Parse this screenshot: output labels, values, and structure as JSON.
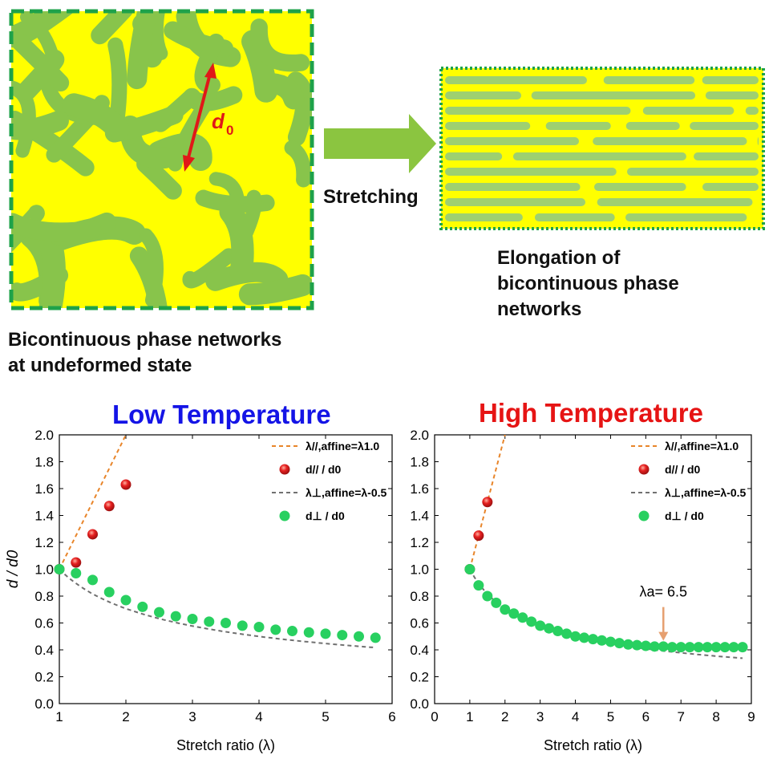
{
  "schematic": {
    "left_caption": [
      "Bicontinuous phase networks",
      "at undeformed state"
    ],
    "arrow_label": "Stretching",
    "right_caption": [
      "Elongation of",
      "bicontinuous phase",
      "networks"
    ],
    "spacing_label": "d",
    "spacing_subscript": "0",
    "colors": {
      "yellow": "#ffff00",
      "green": "#88c44b",
      "border": "#1ea24a",
      "arrow": "#8bc540",
      "spacing_arrow": "#e01818"
    }
  },
  "chart_data": [
    {
      "type": "scatter",
      "title": "Low Temperature",
      "title_color": "#1414e6",
      "xlabel": "Stretch ratio (λ)",
      "ylabel": "d / d0",
      "xlim": [
        1,
        6
      ],
      "ylim": [
        0.0,
        2.0
      ],
      "xticks": [
        "1",
        "2",
        "3",
        "4",
        "5",
        "6"
      ],
      "yticks": [
        "0.0",
        "0.2",
        "0.4",
        "0.6",
        "0.8",
        "1.0",
        "1.2",
        "1.4",
        "1.6",
        "1.8",
        "2.0"
      ],
      "legend_position": "top-right",
      "legend": [
        {
          "label": "λ//,affine=λ1.0",
          "kind": "dash",
          "color": "#e8852a"
        },
        {
          "label": "d// / d0",
          "kind": "marker",
          "color": "#e62020"
        },
        {
          "label": "λ⊥,affine=λ-0.5",
          "kind": "dash",
          "color": "#707070"
        },
        {
          "label": "d⊥ / d0",
          "kind": "marker",
          "color": "#28d060"
        }
      ],
      "series": [
        {
          "name": "λ//,affine=λ1.0",
          "kind": "line",
          "color": "#e8852a",
          "x": [
            1.0,
            2.0
          ],
          "y": [
            1.0,
            2.0
          ]
        },
        {
          "name": "d// / d0",
          "kind": "points",
          "color": "#e62020",
          "x": [
            1.0,
            1.25,
            1.5,
            1.75,
            2.0
          ],
          "y": [
            1.0,
            1.05,
            1.26,
            1.47,
            1.63
          ]
        },
        {
          "name": "λ⊥,affine=λ-0.5",
          "kind": "curve",
          "color": "#707070",
          "exponent": -0.5,
          "x": [
            1.0,
            5.75
          ]
        },
        {
          "name": "d⊥ / d0",
          "kind": "points",
          "color": "#28d060",
          "x": [
            1.0,
            1.25,
            1.5,
            1.75,
            2.0,
            2.25,
            2.5,
            2.75,
            3.0,
            3.25,
            3.5,
            3.75,
            4.0,
            4.25,
            4.5,
            4.75,
            5.0,
            5.25,
            5.5,
            5.75
          ],
          "y": [
            1.0,
            0.97,
            0.92,
            0.83,
            0.77,
            0.72,
            0.68,
            0.65,
            0.63,
            0.61,
            0.6,
            0.58,
            0.57,
            0.55,
            0.54,
            0.53,
            0.52,
            0.51,
            0.5,
            0.49
          ]
        }
      ]
    },
    {
      "type": "scatter",
      "title": "High Temperature",
      "title_color": "#e61414",
      "xlabel": "Stretch ratio (λ)",
      "ylabel": "",
      "xlim": [
        0,
        9
      ],
      "ylim": [
        0.0,
        2.0
      ],
      "xticks": [
        "0",
        "1",
        "2",
        "3",
        "4",
        "5",
        "6",
        "7",
        "8",
        "9"
      ],
      "yticks": [
        "0.0",
        "0.2",
        "0.4",
        "0.6",
        "0.8",
        "1.0",
        "1.2",
        "1.4",
        "1.6",
        "1.8",
        "2.0"
      ],
      "legend_position": "top-right",
      "legend": [
        {
          "label": "λ//,affine=λ1.0",
          "kind": "dash",
          "color": "#e8852a"
        },
        {
          "label": "d// / d0",
          "kind": "marker",
          "color": "#e62020"
        },
        {
          "label": "λ⊥,affine=λ-0.5",
          "kind": "dash",
          "color": "#707070"
        },
        {
          "label": "d⊥ / d0",
          "kind": "marker",
          "color": "#28d060"
        }
      ],
      "annotation": {
        "text": "λa= 6.5",
        "x": 6.5,
        "y": 0.45,
        "color": "#e6a070"
      },
      "series": [
        {
          "name": "λ//,affine=λ1.0",
          "kind": "line",
          "color": "#e8852a",
          "x": [
            1.0,
            2.0
          ],
          "y": [
            1.0,
            2.0
          ]
        },
        {
          "name": "d// / d0",
          "kind": "points",
          "color": "#e62020",
          "x": [
            1.0,
            1.25,
            1.5
          ],
          "y": [
            1.0,
            1.25,
            1.5
          ]
        },
        {
          "name": "λ⊥,affine=λ-0.5",
          "kind": "curve",
          "color": "#707070",
          "exponent": -0.5,
          "x": [
            1.0,
            8.75
          ]
        },
        {
          "name": "d⊥ / d0",
          "kind": "points",
          "color": "#28d060",
          "x": [
            1.0,
            1.25,
            1.5,
            1.75,
            2.0,
            2.25,
            2.5,
            2.75,
            3.0,
            3.25,
            3.5,
            3.75,
            4.0,
            4.25,
            4.5,
            4.75,
            5.0,
            5.25,
            5.5,
            5.75,
            6.0,
            6.25,
            6.5,
            6.75,
            7.0,
            7.25,
            7.5,
            7.75,
            8.0,
            8.25,
            8.5,
            8.75
          ],
          "y": [
            1.0,
            0.88,
            0.8,
            0.75,
            0.7,
            0.67,
            0.64,
            0.61,
            0.58,
            0.56,
            0.54,
            0.52,
            0.5,
            0.49,
            0.48,
            0.47,
            0.46,
            0.45,
            0.44,
            0.435,
            0.43,
            0.425,
            0.425,
            0.42,
            0.42,
            0.42,
            0.42,
            0.42,
            0.42,
            0.42,
            0.42,
            0.42
          ]
        }
      ]
    }
  ]
}
